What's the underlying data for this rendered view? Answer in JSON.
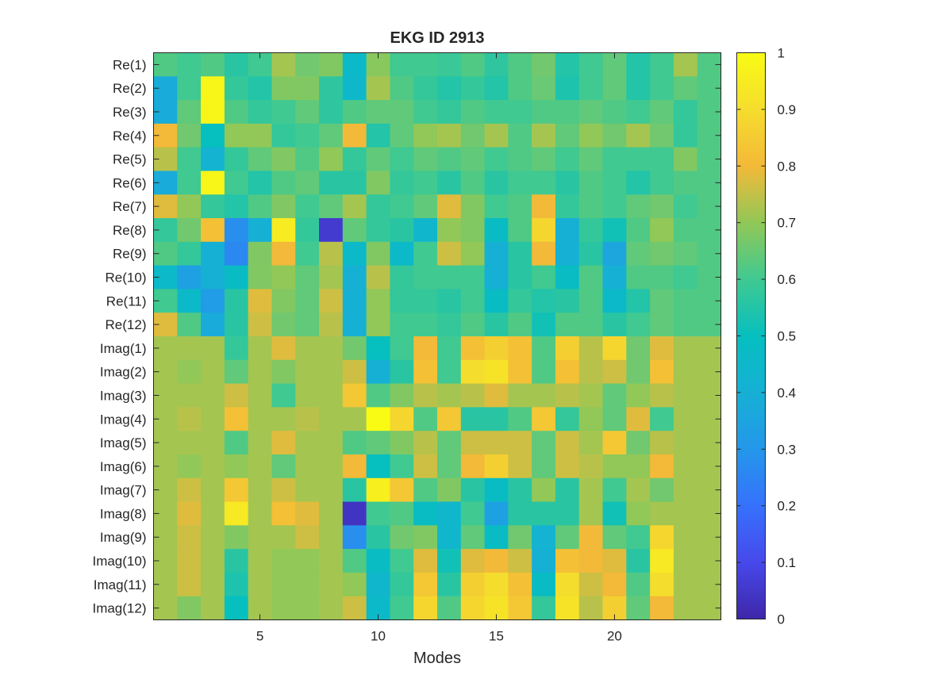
{
  "chart_data": {
    "type": "heatmap",
    "title": "EKG ID 2913",
    "xlabel": "Modes",
    "ylabel": "",
    "x_range": [
      0.5,
      24.5
    ],
    "x_ticks": [
      5,
      10,
      15,
      20
    ],
    "y_labels": [
      "Re(1)",
      "Re(2)",
      "Re(3)",
      "Re(4)",
      "Re(5)",
      "Re(6)",
      "Re(7)",
      "Re(8)",
      "Re(9)",
      "Re(10)",
      "Re(11)",
      "Re(12)",
      "Imag(1)",
      "Imag(2)",
      "Imag(3)",
      "Imag(4)",
      "Imag(5)",
      "Imag(6)",
      "Imag(7)",
      "Imag(8)",
      "Imag(9)",
      "Imag(10)",
      "Imag(11)",
      "Imag(12)"
    ],
    "colormap": "parula",
    "color_limits": [
      0,
      1
    ],
    "colorbar_ticks": [
      0,
      0.1,
      0.2,
      0.3,
      0.4,
      0.5,
      0.6,
      0.7,
      0.8,
      0.9,
      1
    ],
    "colorbar_tick_labels": [
      "0",
      "0.1",
      "0.2",
      "0.3",
      "0.4",
      "0.5",
      "0.6",
      "0.7",
      "0.8",
      "0.9",
      "1"
    ],
    "values": [
      [
        0.62,
        0.6,
        0.62,
        0.56,
        0.6,
        0.72,
        0.66,
        0.68,
        0.46,
        0.69,
        0.6,
        0.6,
        0.59,
        0.62,
        0.57,
        0.62,
        0.66,
        0.55,
        0.6,
        0.64,
        0.55,
        0.6,
        0.72,
        0.62
      ],
      [
        0.38,
        0.6,
        0.98,
        0.58,
        0.55,
        0.68,
        0.68,
        0.57,
        0.45,
        0.72,
        0.62,
        0.58,
        0.55,
        0.58,
        0.55,
        0.62,
        0.65,
        0.54,
        0.6,
        0.64,
        0.55,
        0.6,
        0.64,
        0.62
      ],
      [
        0.38,
        0.64,
        0.98,
        0.62,
        0.58,
        0.6,
        0.64,
        0.57,
        0.62,
        0.64,
        0.64,
        0.6,
        0.58,
        0.62,
        0.6,
        0.6,
        0.62,
        0.62,
        0.64,
        0.62,
        0.6,
        0.64,
        0.58,
        0.62
      ],
      [
        0.8,
        0.66,
        0.5,
        0.7,
        0.7,
        0.58,
        0.6,
        0.64,
        0.8,
        0.55,
        0.64,
        0.7,
        0.72,
        0.66,
        0.72,
        0.62,
        0.72,
        0.64,
        0.7,
        0.66,
        0.72,
        0.66,
        0.58,
        0.62
      ],
      [
        0.74,
        0.6,
        0.42,
        0.58,
        0.64,
        0.68,
        0.62,
        0.7,
        0.58,
        0.64,
        0.6,
        0.64,
        0.62,
        0.64,
        0.6,
        0.62,
        0.64,
        0.6,
        0.64,
        0.6,
        0.6,
        0.6,
        0.68,
        0.62
      ],
      [
        0.38,
        0.6,
        0.98,
        0.6,
        0.55,
        0.62,
        0.64,
        0.56,
        0.56,
        0.68,
        0.58,
        0.6,
        0.56,
        0.62,
        0.56,
        0.6,
        0.6,
        0.56,
        0.62,
        0.6,
        0.55,
        0.6,
        0.62,
        0.62
      ],
      [
        0.78,
        0.7,
        0.58,
        0.55,
        0.62,
        0.68,
        0.6,
        0.64,
        0.72,
        0.58,
        0.6,
        0.64,
        0.78,
        0.68,
        0.6,
        0.62,
        0.8,
        0.58,
        0.62,
        0.6,
        0.64,
        0.66,
        0.6,
        0.62
      ],
      [
        0.58,
        0.66,
        0.82,
        0.28,
        0.4,
        0.95,
        0.58,
        0.06,
        0.64,
        0.58,
        0.56,
        0.44,
        0.7,
        0.68,
        0.48,
        0.62,
        0.88,
        0.4,
        0.58,
        0.52,
        0.62,
        0.7,
        0.62,
        0.62
      ],
      [
        0.62,
        0.58,
        0.4,
        0.26,
        0.68,
        0.8,
        0.6,
        0.74,
        0.46,
        0.68,
        0.46,
        0.6,
        0.76,
        0.7,
        0.4,
        0.56,
        0.8,
        0.4,
        0.56,
        0.36,
        0.64,
        0.66,
        0.64,
        0.62
      ],
      [
        0.46,
        0.34,
        0.4,
        0.48,
        0.68,
        0.7,
        0.64,
        0.72,
        0.4,
        0.74,
        0.58,
        0.6,
        0.6,
        0.6,
        0.4,
        0.56,
        0.6,
        0.48,
        0.62,
        0.4,
        0.62,
        0.62,
        0.6,
        0.62
      ],
      [
        0.6,
        0.46,
        0.32,
        0.56,
        0.78,
        0.68,
        0.64,
        0.76,
        0.4,
        0.7,
        0.58,
        0.58,
        0.56,
        0.6,
        0.48,
        0.58,
        0.55,
        0.56,
        0.62,
        0.46,
        0.55,
        0.64,
        0.62,
        0.62
      ],
      [
        0.78,
        0.62,
        0.38,
        0.56,
        0.76,
        0.66,
        0.64,
        0.74,
        0.4,
        0.7,
        0.6,
        0.6,
        0.58,
        0.62,
        0.56,
        0.62,
        0.52,
        0.62,
        0.62,
        0.56,
        0.6,
        0.64,
        0.62,
        0.62
      ],
      [
        0.72,
        0.72,
        0.72,
        0.58,
        0.72,
        0.78,
        0.72,
        0.72,
        0.66,
        0.5,
        0.6,
        0.8,
        0.6,
        0.82,
        0.86,
        0.82,
        0.62,
        0.86,
        0.74,
        0.88,
        0.66,
        0.78,
        0.72,
        0.72
      ],
      [
        0.72,
        0.7,
        0.72,
        0.64,
        0.72,
        0.68,
        0.72,
        0.72,
        0.76,
        0.4,
        0.56,
        0.82,
        0.6,
        0.9,
        0.92,
        0.82,
        0.62,
        0.82,
        0.74,
        0.76,
        0.66,
        0.82,
        0.72,
        0.72
      ],
      [
        0.72,
        0.72,
        0.72,
        0.76,
        0.72,
        0.6,
        0.72,
        0.72,
        0.84,
        0.62,
        0.68,
        0.74,
        0.72,
        0.74,
        0.78,
        0.72,
        0.72,
        0.74,
        0.72,
        0.64,
        0.7,
        0.74,
        0.72,
        0.72
      ],
      [
        0.72,
        0.74,
        0.72,
        0.82,
        0.72,
        0.72,
        0.74,
        0.72,
        0.72,
        1.0,
        0.88,
        0.62,
        0.84,
        0.56,
        0.56,
        0.62,
        0.84,
        0.58,
        0.7,
        0.64,
        0.78,
        0.6,
        0.72,
        0.72
      ],
      [
        0.72,
        0.72,
        0.72,
        0.62,
        0.72,
        0.78,
        0.72,
        0.72,
        0.62,
        0.64,
        0.68,
        0.74,
        0.64,
        0.76,
        0.76,
        0.76,
        0.64,
        0.76,
        0.72,
        0.84,
        0.66,
        0.74,
        0.72,
        0.72
      ],
      [
        0.72,
        0.7,
        0.72,
        0.7,
        0.72,
        0.64,
        0.72,
        0.72,
        0.8,
        0.5,
        0.6,
        0.76,
        0.64,
        0.8,
        0.86,
        0.76,
        0.64,
        0.76,
        0.74,
        0.7,
        0.7,
        0.8,
        0.72,
        0.72
      ],
      [
        0.72,
        0.76,
        0.72,
        0.84,
        0.72,
        0.76,
        0.72,
        0.72,
        0.56,
        0.96,
        0.84,
        0.62,
        0.68,
        0.56,
        0.48,
        0.56,
        0.7,
        0.56,
        0.72,
        0.6,
        0.72,
        0.66,
        0.72,
        0.72
      ],
      [
        0.72,
        0.78,
        0.72,
        0.94,
        0.72,
        0.82,
        0.78,
        0.72,
        0.04,
        0.6,
        0.62,
        0.48,
        0.44,
        0.6,
        0.34,
        0.56,
        0.56,
        0.56,
        0.72,
        0.52,
        0.7,
        0.72,
        0.72,
        0.72
      ],
      [
        0.72,
        0.76,
        0.72,
        0.68,
        0.72,
        0.72,
        0.76,
        0.72,
        0.28,
        0.56,
        0.66,
        0.68,
        0.44,
        0.64,
        0.48,
        0.66,
        0.42,
        0.64,
        0.8,
        0.64,
        0.6,
        0.88,
        0.72,
        0.72
      ],
      [
        0.72,
        0.76,
        0.72,
        0.56,
        0.72,
        0.7,
        0.7,
        0.72,
        0.62,
        0.48,
        0.6,
        0.78,
        0.52,
        0.78,
        0.8,
        0.76,
        0.4,
        0.82,
        0.8,
        0.78,
        0.56,
        0.94,
        0.72,
        0.72
      ],
      [
        0.72,
        0.76,
        0.72,
        0.54,
        0.72,
        0.7,
        0.7,
        0.72,
        0.7,
        0.44,
        0.58,
        0.84,
        0.56,
        0.86,
        0.9,
        0.82,
        0.48,
        0.9,
        0.76,
        0.8,
        0.62,
        0.9,
        0.72,
        0.72
      ],
      [
        0.72,
        0.68,
        0.72,
        0.5,
        0.72,
        0.7,
        0.7,
        0.72,
        0.76,
        0.46,
        0.6,
        0.88,
        0.62,
        0.88,
        0.92,
        0.84,
        0.58,
        0.92,
        0.74,
        0.86,
        0.64,
        0.8,
        0.72,
        0.72
      ]
    ]
  }
}
